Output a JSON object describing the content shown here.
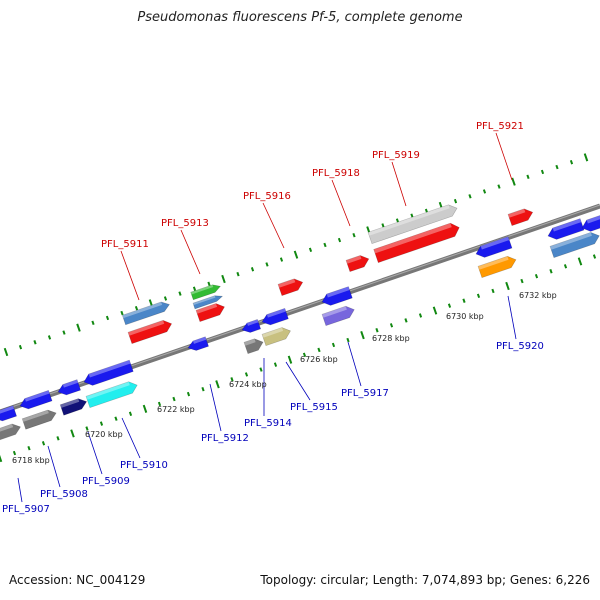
{
  "title": "Pseudomonas fluorescens Pf-5, complete genome",
  "footer": {
    "accession": "Accession: NC_004129",
    "summary": "Topology: circular; Length: 7,074,893 bp; Genes: 6,226"
  },
  "colors": {
    "red": "#ee1111",
    "blue": "#1a1aee",
    "steelblue": "#4a86c8",
    "gray": "#777777",
    "lightgray": "#cccccc",
    "green": "#33bb33",
    "khaki": "#c8c080",
    "cyan": "#22eeee",
    "navy": "#111177",
    "orange": "#ff9900",
    "slateblue": "#7766dd",
    "dot": "#118811"
  },
  "ticks": [
    "6718 kbp",
    "6720 kbp",
    "6722 kbp",
    "6724 kbp",
    "6726 kbp",
    "6728 kbp",
    "6730 kbp",
    "6732 kbp"
  ],
  "labels": [
    {
      "text": "PFL_5907",
      "color": "blue"
    },
    {
      "text": "PFL_5908",
      "color": "blue"
    },
    {
      "text": "PFL_5909",
      "color": "blue"
    },
    {
      "text": "PFL_5910",
      "color": "blue"
    },
    {
      "text": "PFL_5911",
      "color": "red"
    },
    {
      "text": "PFL_5912",
      "color": "blue"
    },
    {
      "text": "PFL_5913",
      "color": "red"
    },
    {
      "text": "PFL_5914",
      "color": "blue"
    },
    {
      "text": "PFL_5915",
      "color": "blue"
    },
    {
      "text": "PFL_5916",
      "color": "red"
    },
    {
      "text": "PFL_5917",
      "color": "blue"
    },
    {
      "text": "PFL_5918",
      "color": "red"
    },
    {
      "text": "PFL_5919",
      "color": "red"
    },
    {
      "text": "PFL_5920",
      "color": "blue"
    },
    {
      "text": "PFL_5921",
      "color": "red"
    }
  ]
}
